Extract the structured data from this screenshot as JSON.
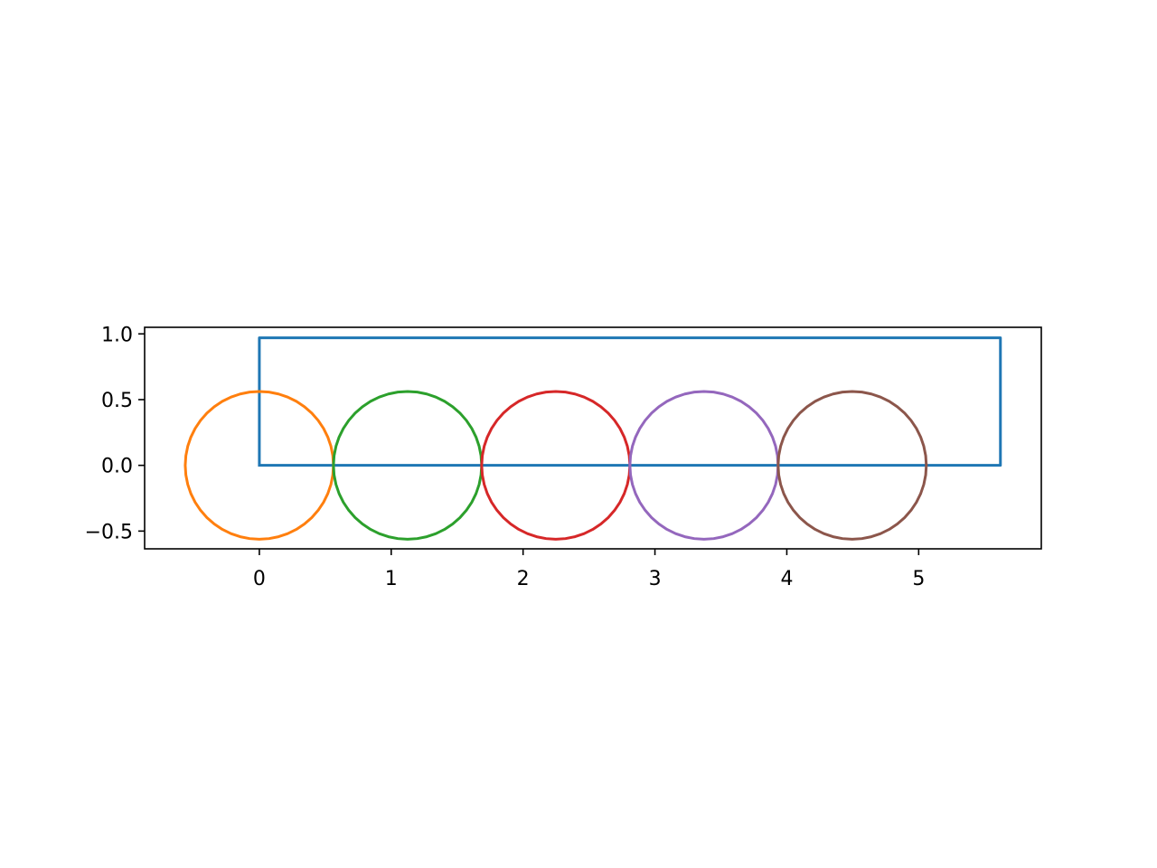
{
  "chart_data": {
    "type": "line",
    "title": "",
    "xlabel": "",
    "ylabel": "",
    "xlim": [
      -0.87,
      5.93
    ],
    "ylim": [
      -0.635,
      1.05
    ],
    "grid": false,
    "legend": "none",
    "x_ticks": [
      {
        "value": 0,
        "label": "0"
      },
      {
        "value": 1,
        "label": "1"
      },
      {
        "value": 2,
        "label": "2"
      },
      {
        "value": 3,
        "label": "3"
      },
      {
        "value": 4,
        "label": "4"
      },
      {
        "value": 5,
        "label": "5"
      }
    ],
    "y_ticks": [
      {
        "value": 1.0,
        "label": "1.0"
      },
      {
        "value": 0.5,
        "label": "0.5"
      },
      {
        "value": 0.0,
        "label": "0.0"
      },
      {
        "value": -0.5,
        "label": "−0.5"
      }
    ],
    "series": [
      {
        "kind": "polyline",
        "color": "#1f77b4",
        "x": [
          0,
          0,
          5.62,
          5.62,
          0
        ],
        "y": [
          0,
          0.97,
          0.97,
          0,
          0
        ]
      },
      {
        "kind": "circle",
        "color": "#ff7f0e",
        "cx": 0.0,
        "cy": 0.0,
        "r": 0.562
      },
      {
        "kind": "circle",
        "color": "#2ca02c",
        "cx": 1.124,
        "cy": 0.0,
        "r": 0.562
      },
      {
        "kind": "circle",
        "color": "#d62728",
        "cx": 2.248,
        "cy": 0.0,
        "r": 0.562
      },
      {
        "kind": "circle",
        "color": "#9467bd",
        "cx": 3.372,
        "cy": 0.0,
        "r": 0.562
      },
      {
        "kind": "circle",
        "color": "#8c564b",
        "cx": 4.496,
        "cy": 0.0,
        "r": 0.562
      }
    ]
  }
}
